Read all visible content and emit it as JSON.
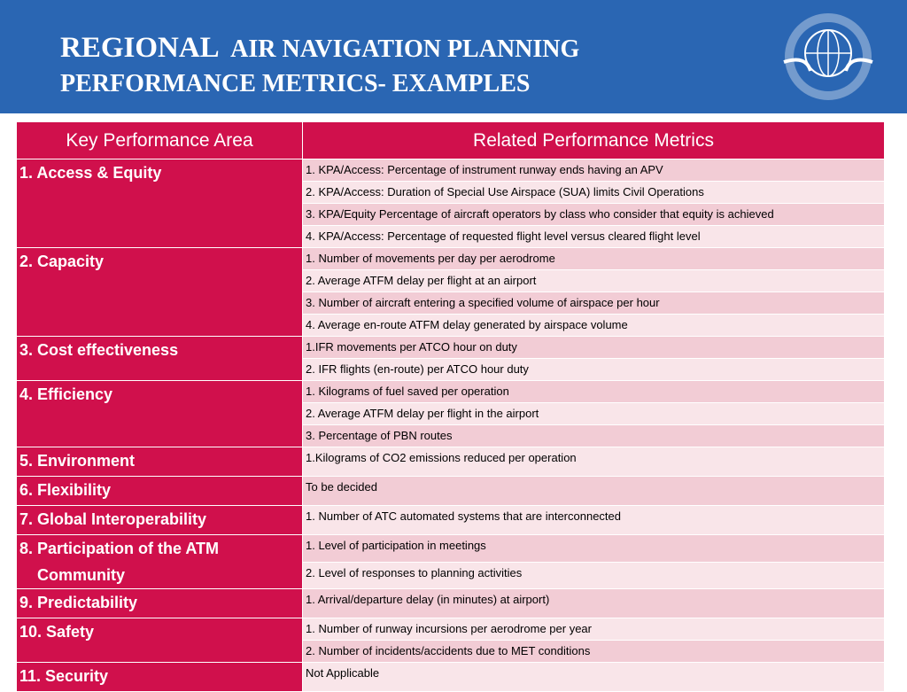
{
  "header": {
    "title_big": "REGIONAL",
    "title_rest": "AIR NAVIGATION PLANNING",
    "title_line2": "PERFORMANCE METRICS- EXAMPLES"
  },
  "table": {
    "headers": [
      "Key Performance Area",
      "Related Performance Metrics"
    ],
    "groups": [
      {
        "area": "1.  Access & Equity",
        "metrics": [
          "1. KPA/Access: Percentage of instrument runway ends having an APV",
          "2. KPA/Access:  Duration of Special Use Airspace (SUA) limits Civil Operations",
          "3. KPA/Equity Percentage of aircraft operators by class who consider that equity is achieved",
          "4. KPA/Access: Percentage of requested flight level versus cleared flight level"
        ]
      },
      {
        "area": "2.  Capacity",
        "metrics": [
          "1. Number of movements per day  per aerodrome",
          "2. Average ATFM delay per flight at  an airport",
          "3. Number of aircraft entering a specified volume of airspace per hour",
          "4. Average en-route ATFM delay generated by airspace volume"
        ]
      },
      {
        "area": "3.  Cost effectiveness",
        "metrics": [
          "1.IFR movements per ATCO hour on duty",
          "2. IFR flights (en-route) per ATCO hour duty"
        ]
      },
      {
        "area": "4.  Efficiency",
        "metrics": [
          "1. Kilograms of fuel saved per operation",
          "2. Average ATFM delay per flight in the airport",
          "3. Percentage of PBN routes"
        ]
      },
      {
        "area": "5.  Environment",
        "metrics": [
          "1.Kilograms of CO2  emissions reduced per operation"
        ]
      },
      {
        "area": "6.  Flexibility",
        "metrics": [
          "To be decided"
        ]
      },
      {
        "area": "7.  Global  Interoperability",
        "metrics": [
          "1. Number of ATC automated systems that are interconnected"
        ]
      },
      {
        "area": "8.  Participation of the ATM Community",
        "metrics": [
          "1. Level of participation  in meetings",
          "2. Level of responses to planning activities"
        ]
      },
      {
        "area": "9.  Predictability",
        "metrics": [
          "1. Arrival/departure delay (in minutes) at airport)"
        ]
      },
      {
        "area": "10. Safety",
        "metrics": [
          "1. Number of runway incursions per aerodrome per year",
          "2. Number of incidents/accidents due to MET conditions"
        ]
      },
      {
        "area": "11. Security",
        "metrics": [
          "Not Applicable"
        ]
      }
    ]
  }
}
